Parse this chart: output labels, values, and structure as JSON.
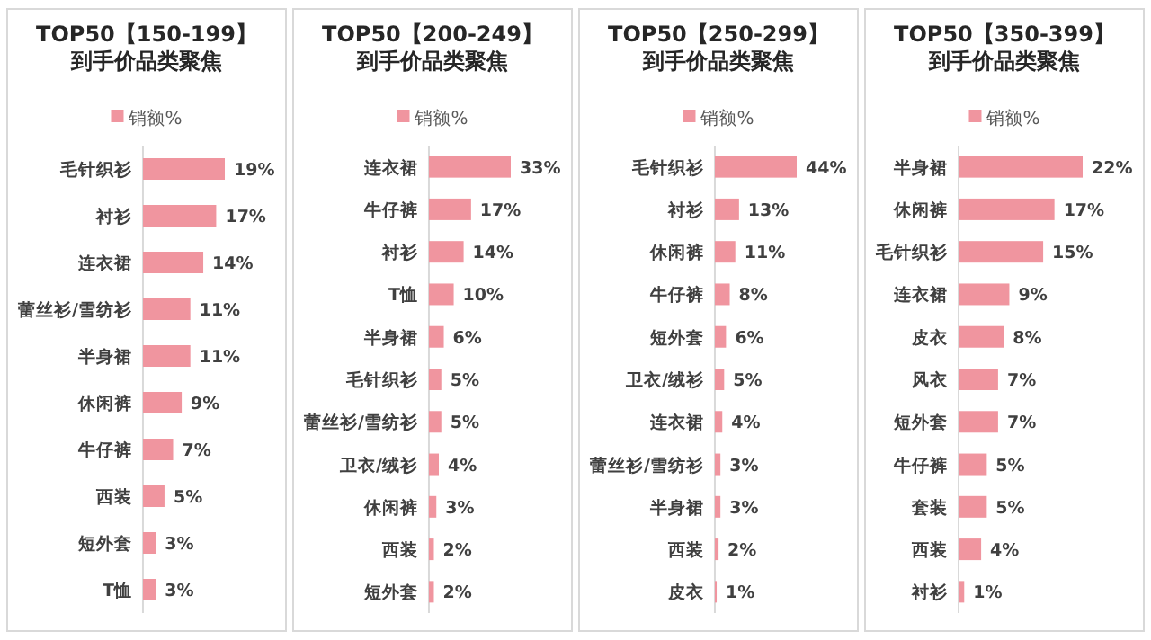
{
  "chart_data": [
    {
      "type": "bar",
      "orientation": "horizontal",
      "title": "TOP50【150-199】",
      "subtitle": "到手价品类聚焦",
      "legend": "top",
      "categories": [
        "毛针织衫",
        "衬衫",
        "连衣裙",
        "蕾丝衫/雪纺衫",
        "半身裙",
        "休闲裤",
        "牛仔裤",
        "西装",
        "短外套",
        "T恤"
      ],
      "series": [
        {
          "name": "销额%",
          "color": "#f0959f",
          "values": [
            19,
            17,
            14,
            11,
            11,
            9,
            7,
            5,
            3,
            3
          ],
          "value_labels": [
            "19%",
            "17%",
            "14%",
            "11%",
            "11%",
            "9%",
            "7%",
            "5%",
            "3%",
            "3%"
          ]
        }
      ]
    },
    {
      "type": "bar",
      "orientation": "horizontal",
      "title": "TOP50【200-249】",
      "subtitle": "到手价品类聚焦",
      "legend": "top",
      "categories": [
        "连衣裙",
        "牛仔裤",
        "衬衫",
        "T恤",
        "半身裙",
        "毛针织衫",
        "蕾丝衫/雪纺衫",
        "卫衣/绒衫",
        "休闲裤",
        "西装",
        "短外套"
      ],
      "series": [
        {
          "name": "销额%",
          "color": "#f0959f",
          "values": [
            33,
            17,
            14,
            10,
            6,
            5,
            5,
            4,
            3,
            2,
            2
          ],
          "value_labels": [
            "33%",
            "17%",
            "14%",
            "10%",
            "6%",
            "5%",
            "5%",
            "4%",
            "3%",
            "2%",
            "2%"
          ]
        }
      ]
    },
    {
      "type": "bar",
      "orientation": "horizontal",
      "title": "TOP50【250-299】",
      "subtitle": "到手价品类聚焦",
      "legend": "top",
      "categories": [
        "毛针织衫",
        "衬衫",
        "休闲裤",
        "牛仔裤",
        "短外套",
        "卫衣/绒衫",
        "连衣裙",
        "蕾丝衫/雪纺衫",
        "半身裙",
        "西装",
        "皮衣"
      ],
      "series": [
        {
          "name": "销额%",
          "color": "#f0959f",
          "values": [
            44,
            13,
            11,
            8,
            6,
            5,
            4,
            3,
            3,
            2,
            1
          ],
          "value_labels": [
            "44%",
            "13%",
            "11%",
            "8%",
            "6%",
            "5%",
            "4%",
            "3%",
            "3%",
            "2%",
            "1%"
          ]
        }
      ]
    },
    {
      "type": "bar",
      "orientation": "horizontal",
      "title": "TOP50【350-399】",
      "subtitle": "到手价品类聚焦",
      "legend": "top",
      "categories": [
        "半身裙",
        "休闲裤",
        "毛针织衫",
        "连衣裙",
        "皮衣",
        "风衣",
        "短外套",
        "牛仔裤",
        "套装",
        "西装",
        "衬衫"
      ],
      "series": [
        {
          "name": "销额%",
          "color": "#f0959f",
          "values": [
            22,
            17,
            15,
            9,
            8,
            7,
            7,
            5,
            5,
            4,
            1
          ],
          "value_labels": [
            "22%",
            "17%",
            "15%",
            "9%",
            "8%",
            "7%",
            "7%",
            "5%",
            "5%",
            "4%",
            "1%"
          ]
        }
      ]
    }
  ]
}
